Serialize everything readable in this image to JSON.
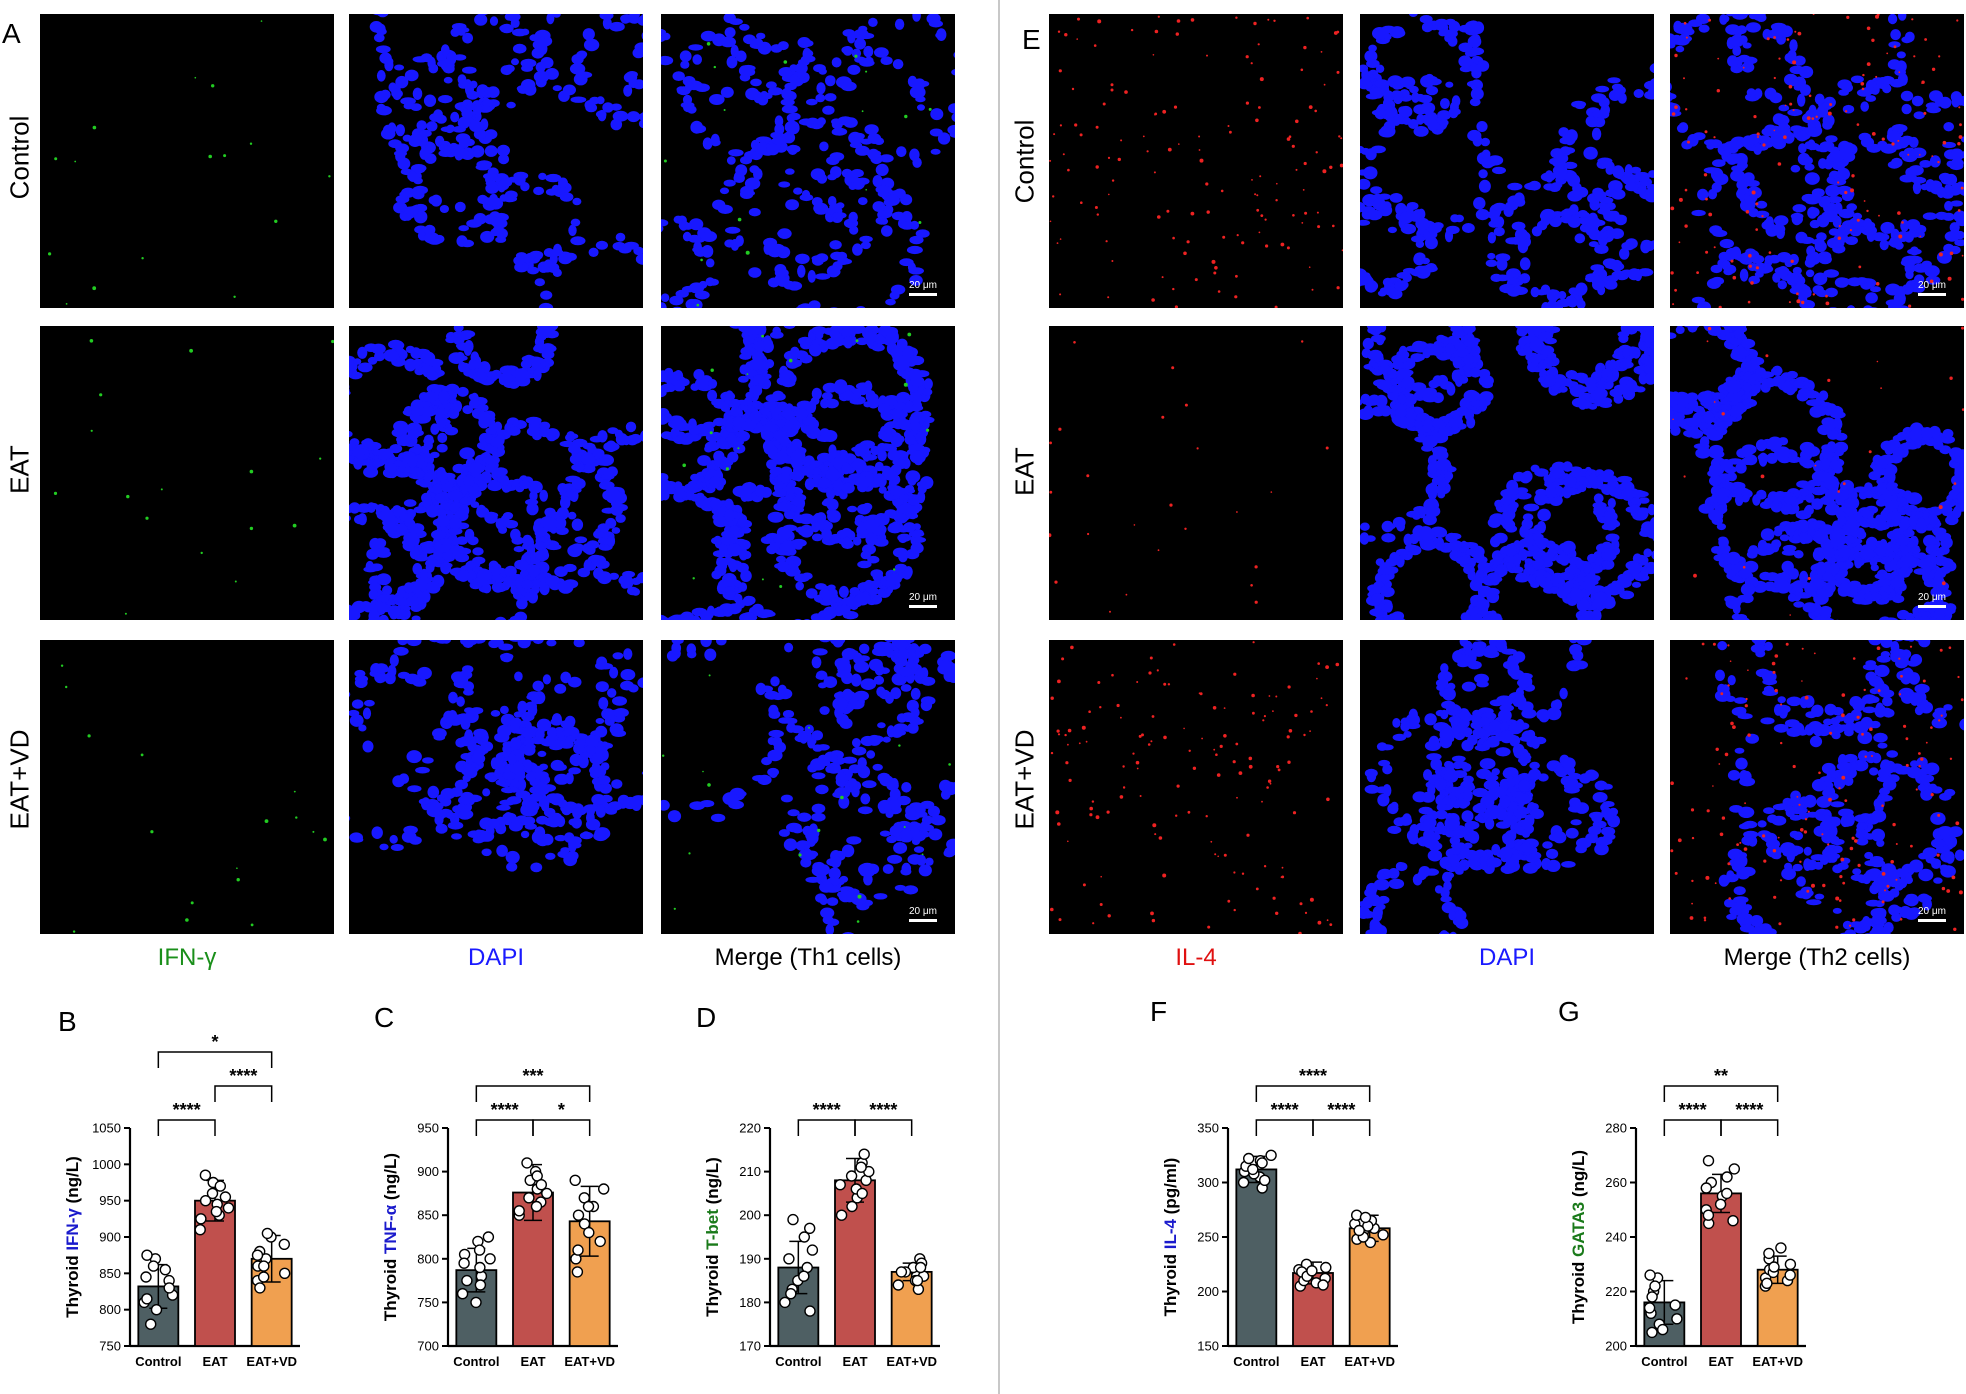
{
  "panels": {
    "A": "A",
    "B": "B",
    "C": "C",
    "D": "D",
    "E": "E",
    "F": "F",
    "G": "G"
  },
  "rows": [
    "Control",
    "EAT",
    "EAT+VD"
  ],
  "left_columns": [
    {
      "label": "IFN-γ",
      "color": "#1a8f1a"
    },
    {
      "label": "DAPI",
      "color": "#1a1aff"
    },
    {
      "label": "Merge (Th1 cells)",
      "color": "#000000"
    }
  ],
  "right_columns": [
    {
      "label": "IL-4",
      "color": "#e01010"
    },
    {
      "label": "DAPI",
      "color": "#1a1aff"
    },
    {
      "label": "Merge (Th2 cells)",
      "color": "#000000"
    }
  ],
  "scale_bar": "20 μm",
  "colors": {
    "control": "#4e5f63",
    "eat": "#c0504d",
    "eatvd": "#f0a050",
    "dapi": "#1818ff",
    "ifn": "#22cc22",
    "il4": "#ee2222"
  },
  "chart_data": [
    {
      "id": "B",
      "type": "bar",
      "categories": [
        "Control",
        "EAT",
        "EAT+VD"
      ],
      "ylabel_prefix": "Thyroid ",
      "ylabel_marker": "IFN-γ",
      "ylabel_marker_color": "#1a1acc",
      "ylabel_suffix": " (ng/L)",
      "ylim": [
        750,
        1050
      ],
      "ticks": [
        750,
        800,
        850,
        900,
        950,
        1000,
        1050
      ],
      "means": [
        832,
        950,
        870
      ],
      "sd": [
        30,
        28,
        32
      ],
      "points": [
        [
          810,
          840,
          855,
          870,
          820,
          800,
          780,
          845,
          860,
          875,
          815,
          830
        ],
        [
          925,
          940,
          960,
          975,
          930,
          950,
          970,
          910,
          955,
          985,
          945,
          935
        ],
        [
          840,
          860,
          880,
          900,
          870,
          850,
          830,
          890,
          905,
          860,
          875,
          845
        ]
      ],
      "brackets": [
        {
          "from": 0,
          "to": 1,
          "label": "****",
          "level": 1
        },
        {
          "from": 1,
          "to": 2,
          "label": "****",
          "level": 2
        },
        {
          "from": 0,
          "to": 2,
          "label": "*",
          "level": 3
        }
      ]
    },
    {
      "id": "C",
      "type": "bar",
      "categories": [
        "Control",
        "EAT",
        "EAT+VD"
      ],
      "ylabel_prefix": "Thyroid ",
      "ylabel_marker": "TNF-α",
      "ylabel_marker_color": "#1a1acc",
      "ylabel_suffix": " (ng/L)",
      "ylim": [
        700,
        950
      ],
      "ticks": [
        700,
        750,
        800,
        850,
        900,
        950
      ],
      "means": [
        787,
        876,
        843
      ],
      "sd": [
        25,
        32,
        40
      ],
      "points": [
        [
          760,
          780,
          800,
          820,
          770,
          790,
          810,
          750,
          805,
          825,
          775,
          795
        ],
        [
          850,
          865,
          880,
          900,
          910,
          870,
          855,
          890,
          860,
          875,
          895,
          885
        ],
        [
          800,
          820,
          840,
          860,
          880,
          810,
          830,
          870,
          850,
          890,
          785,
          860
        ]
      ],
      "brackets": [
        {
          "from": 0,
          "to": 1,
          "label": "****",
          "level": 1
        },
        {
          "from": 1,
          "to": 2,
          "label": "*",
          "level": 1
        },
        {
          "from": 0,
          "to": 2,
          "label": "***",
          "level": 2
        }
      ]
    },
    {
      "id": "D",
      "type": "bar",
      "categories": [
        "Control",
        "EAT",
        "EAT+VD"
      ],
      "ylabel_prefix": "Thyroid ",
      "ylabel_marker": "T-bet",
      "ylabel_marker_color": "#1a7a1a",
      "ylabel_suffix": " (ng/L)",
      "ylim": [
        170,
        220
      ],
      "ticks": [
        170,
        180,
        190,
        200,
        210,
        220
      ],
      "means": [
        188,
        208,
        187
      ],
      "sd": [
        6,
        5,
        2
      ],
      "points": [
        [
          180,
          185,
          190,
          195,
          183,
          188,
          192,
          178,
          197,
          186,
          182,
          199
        ],
        [
          200,
          204,
          208,
          212,
          210,
          206,
          202,
          214,
          209,
          205,
          211,
          207
        ],
        [
          184,
          186,
          188,
          190,
          185,
          187,
          189,
          183,
          186,
          188,
          187,
          185
        ]
      ],
      "brackets": [
        {
          "from": 0,
          "to": 1,
          "label": "****",
          "level": 1
        },
        {
          "from": 1,
          "to": 2,
          "label": "****",
          "level": 1
        }
      ]
    },
    {
      "id": "F",
      "type": "bar",
      "categories": [
        "Control",
        "EAT",
        "EAT+VD"
      ],
      "ylabel_prefix": "Thyroid ",
      "ylabel_marker": "IL-4",
      "ylabel_marker_color": "#1a1acc",
      "ylabel_suffix": " (pg/ml)",
      "ylim": [
        150,
        350
      ],
      "ticks": [
        150,
        200,
        250,
        300,
        350
      ],
      "means": [
        312,
        217,
        258
      ],
      "sd": [
        12,
        10,
        12
      ],
      "points": [
        [
          300,
          310,
          320,
          325,
          305,
          315,
          295,
          318,
          308,
          322,
          312,
          302
        ],
        [
          205,
          210,
          215,
          220,
          225,
          212,
          218,
          208,
          222,
          214,
          206,
          219
        ],
        [
          248,
          255,
          262,
          270,
          252,
          258,
          265,
          245,
          260,
          268,
          250,
          256
        ]
      ],
      "brackets": [
        {
          "from": 0,
          "to": 1,
          "label": "****",
          "level": 1
        },
        {
          "from": 1,
          "to": 2,
          "label": "****",
          "level": 1
        },
        {
          "from": 0,
          "to": 2,
          "label": "****",
          "level": 2
        }
      ]
    },
    {
      "id": "G",
      "type": "bar",
      "categories": [
        "Control",
        "EAT",
        "EAT+VD"
      ],
      "ylabel_prefix": "Thyroid ",
      "ylabel_marker": "GATA3",
      "ylabel_marker_color": "#1a7a1a",
      "ylabel_suffix": " (ng/L)",
      "ylim": [
        200,
        280
      ],
      "ticks": [
        200,
        220,
        240,
        260,
        280
      ],
      "means": [
        216,
        256,
        228
      ],
      "sd": [
        8,
        7,
        5
      ],
      "points": [
        [
          205,
          210,
          215,
          220,
          225,
          208,
          212,
          218,
          222,
          226,
          206,
          214
        ],
        [
          245,
          250,
          255,
          260,
          265,
          248,
          252,
          258,
          262,
          268,
          246,
          256
        ],
        [
          222,
          225,
          228,
          232,
          236,
          224,
          226,
          230,
          234,
          223,
          227,
          229
        ]
      ],
      "brackets": [
        {
          "from": 0,
          "to": 1,
          "label": "****",
          "level": 1
        },
        {
          "from": 1,
          "to": 2,
          "label": "****",
          "level": 1
        },
        {
          "from": 0,
          "to": 2,
          "label": "**",
          "level": 2
        }
      ]
    }
  ]
}
